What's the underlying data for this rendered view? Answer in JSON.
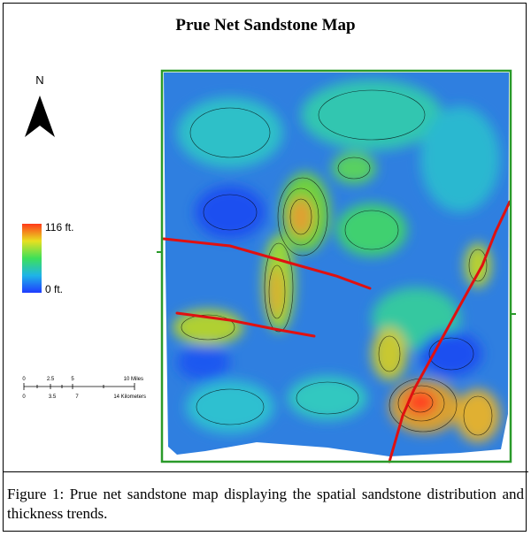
{
  "title": "Prue Net Sandstone Map",
  "north_label": "N",
  "legend": {
    "max_label": "116 ft.",
    "min_label": "0 ft."
  },
  "scale_bar": {
    "miles_labels": [
      "0",
      "2.5",
      "5",
      "10 Miles"
    ],
    "km_labels": [
      "0",
      "3.5",
      "7",
      "14 Kilometers"
    ]
  },
  "caption": "Figure 1: Prue net sandstone map displaying the spatial sandstone distribution and thickness trends."
}
